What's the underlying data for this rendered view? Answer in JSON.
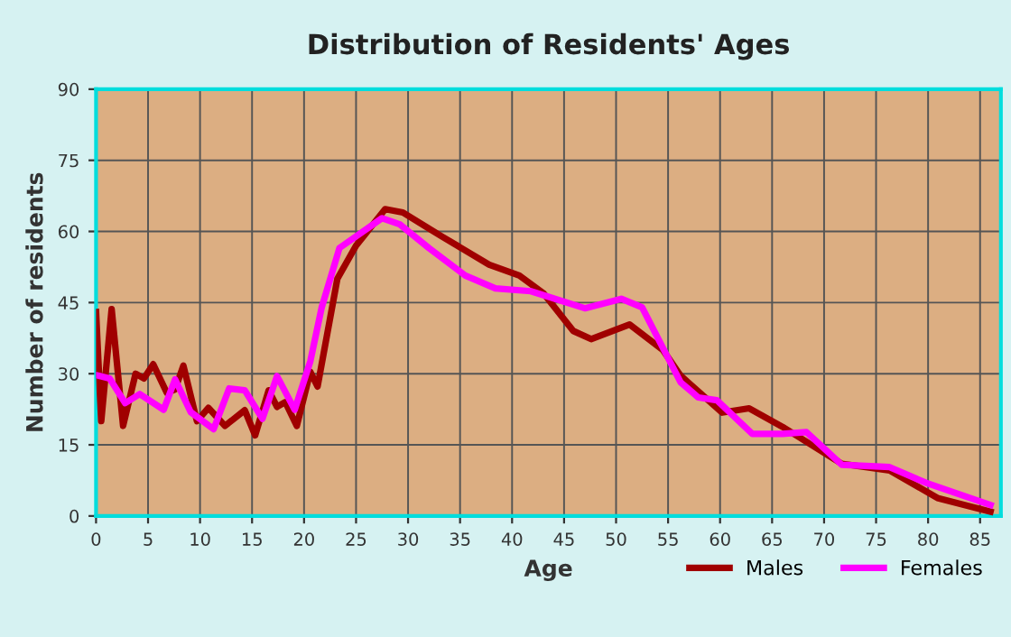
{
  "chart_data": {
    "type": "line",
    "title": "Distribution of Residents' Ages",
    "xlabel": "Age",
    "ylabel": "Number of residents",
    "xlim": [
      0,
      87
    ],
    "xticks": [
      0,
      5,
      10,
      15,
      20,
      25,
      30,
      35,
      40,
      45,
      50,
      55,
      60,
      65,
      70,
      75,
      80,
      85
    ],
    "ylim": [
      0,
      90
    ],
    "yticks": [
      0,
      15,
      30,
      45,
      60,
      75,
      90
    ],
    "grid": true,
    "legend": "bottom right",
    "marker": "none",
    "line_style": "solid",
    "series": [
      {
        "name": "Males",
        "color": "#a00000",
        "x": [
          0,
          0.5,
          1.5,
          2.6,
          3.8,
          4.6,
          5.5,
          6.8,
          7.6,
          8.4,
          9.7,
          10.8,
          12.4,
          14.3,
          15.3,
          16.6,
          17.4,
          18.2,
          19.3,
          20.6,
          21.3,
          23.2,
          25,
          27.8,
          29.5,
          33.2,
          37.8,
          40.7,
          43,
          45.9,
          47.6,
          51.3,
          54.5,
          56.2,
          60.2,
          62.8,
          66,
          71.7,
          76.3,
          80.9,
          86
        ],
        "values": [
          43,
          20,
          43.6,
          19,
          30,
          29,
          32,
          26,
          26.7,
          31.7,
          20,
          22.8,
          19,
          22.3,
          17,
          26.5,
          23,
          24,
          19,
          30.4,
          27.3,
          50,
          57,
          64.7,
          64,
          59,
          53,
          50.7,
          47,
          39,
          37.3,
          40.4,
          35,
          29.6,
          21.8,
          22.7,
          18.8,
          11,
          9.6,
          3.8,
          0.9
        ]
      },
      {
        "name": "Females",
        "color": "#ff00ff",
        "x": [
          0.2,
          1.3,
          2.8,
          4.2,
          6.5,
          7.6,
          9.1,
          11.3,
          12.8,
          14.3,
          16,
          17.4,
          19.1,
          20.6,
          21.7,
          23.4,
          27.5,
          29.2,
          32,
          35.5,
          38.4,
          41.8,
          47,
          50.5,
          52.5,
          56.2,
          57.9,
          59.7,
          63.1,
          66,
          68.3,
          71.7,
          76.3,
          79.8,
          86
        ],
        "values": [
          29.6,
          29,
          23.8,
          25.7,
          22.4,
          28.8,
          21.9,
          18.3,
          26.9,
          26.5,
          20.5,
          29.5,
          22.4,
          32.6,
          44,
          56.5,
          62.8,
          61.5,
          56.5,
          50.7,
          48,
          47.4,
          43.8,
          45.8,
          44,
          28.2,
          25,
          24.4,
          17.3,
          17.3,
          17.7,
          10.8,
          10.3,
          7,
          2.3
        ]
      }
    ]
  }
}
